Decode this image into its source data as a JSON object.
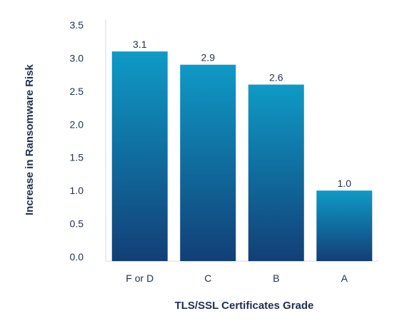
{
  "chart_data": {
    "type": "bar",
    "categories": [
      "F or D",
      "C",
      "B",
      "A"
    ],
    "values": [
      3.1,
      2.9,
      2.6,
      1.0
    ],
    "data_labels": [
      "3.1",
      "2.9",
      "2.6",
      "1.0"
    ],
    "title": "",
    "xlabel": "TLS/SSL Certificates Grade",
    "ylabel": "Increase in Ransomware Risk",
    "ylim": [
      0,
      3.5
    ],
    "yticks": [
      "0.0",
      "0.5",
      "1.0",
      "1.5",
      "2.0",
      "2.5",
      "3.0",
      "3.5"
    ],
    "grid": false,
    "legend": "none",
    "colors": {
      "bar_top": "#0f9ac6",
      "bar_bottom": "#123f76",
      "text": "#1f2f4a",
      "axis": "#d9d9d9"
    }
  }
}
